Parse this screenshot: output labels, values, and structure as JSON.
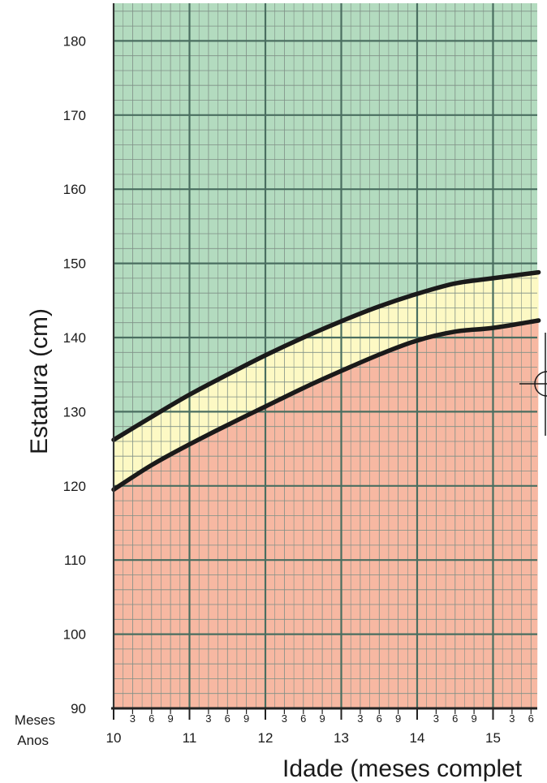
{
  "chart_data": {
    "type": "area",
    "ylabel": "Estatura (cm)",
    "xlabel": "Idade (meses complet",
    "row_labels": {
      "months": "Meses",
      "years": "Anos"
    },
    "ylim": [
      90,
      185
    ],
    "xlim": [
      10,
      15.6
    ],
    "y_ticks": [
      90,
      100,
      110,
      120,
      130,
      140,
      150,
      160,
      170,
      180
    ],
    "x_year_ticks": [
      "10",
      "11",
      "12",
      "13",
      "14",
      "15"
    ],
    "x_month_ticks": [
      "3",
      "6",
      "9"
    ],
    "grid": true,
    "colors": {
      "above_band": "#b3dbbf",
      "band": "#fdf9c4",
      "below_band": "#f7b8a2",
      "major_grid": "#4a6e60",
      "minor_grid": "#7f8f86",
      "curve": "#1a1a1a"
    },
    "series": [
      {
        "x": [
          10,
          10.5,
          11,
          11.5,
          12,
          12.5,
          13,
          13.5,
          14,
          14.5,
          15,
          15.6
        ],
        "values": [
          126.2,
          129.3,
          132.3,
          135.0,
          137.6,
          140.0,
          142.2,
          144.2,
          145.9,
          147.3,
          148.0,
          148.8
        ]
      },
      {
        "x": [
          10,
          10.5,
          11,
          11.5,
          12,
          12.5,
          13,
          13.5,
          14,
          14.5,
          15,
          15.6
        ],
        "values": [
          119.5,
          122.8,
          125.6,
          128.2,
          130.7,
          133.2,
          135.5,
          137.7,
          139.6,
          140.8,
          141.3,
          142.3
        ]
      }
    ]
  }
}
